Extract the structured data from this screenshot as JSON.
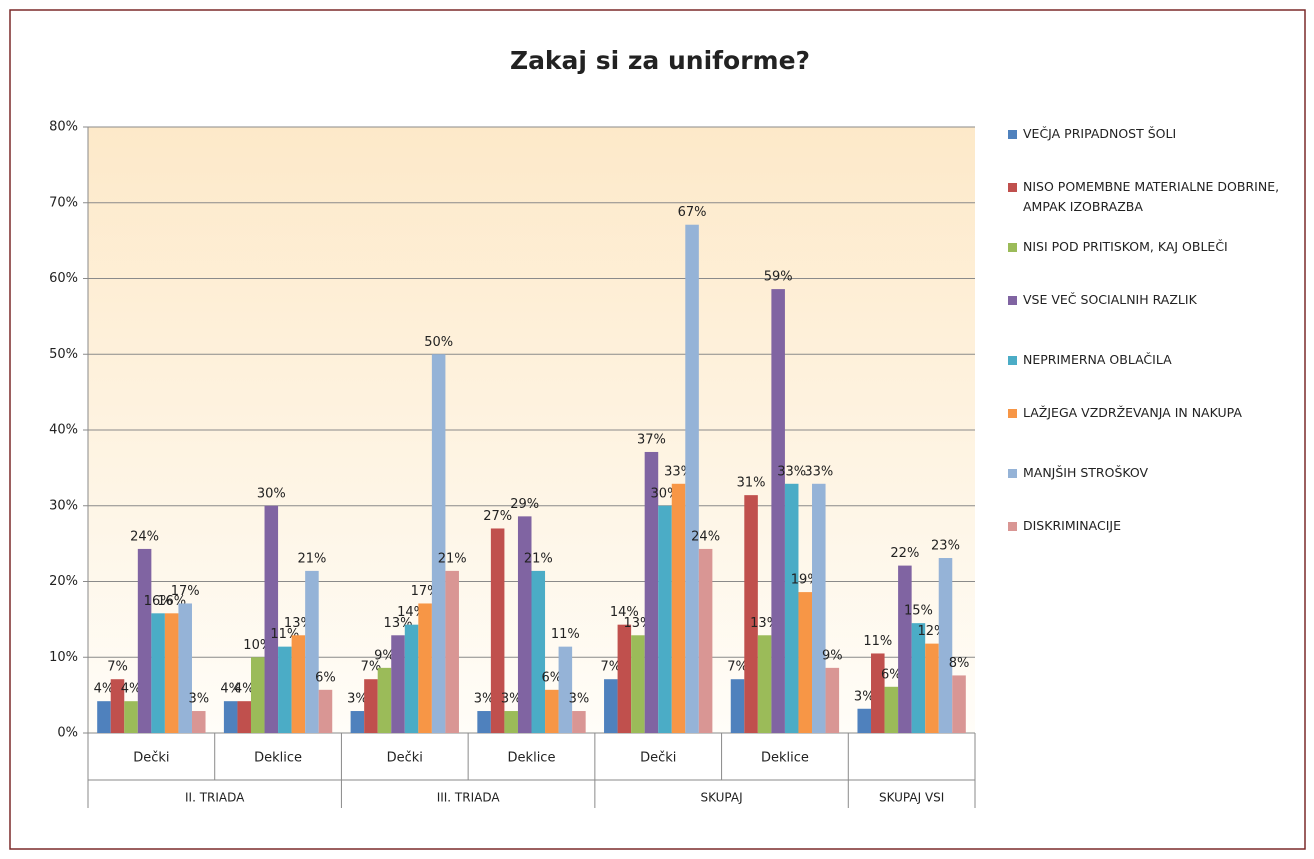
{
  "chart_data": {
    "type": "bar",
    "title": "Zakaj si za uniforme?",
    "categories": [
      "Dečki",
      "Deklice",
      "Dečki",
      "Deklice",
      "Dečki",
      "Deklice",
      null
    ],
    "category_groups": [
      "II. TRIADA",
      "II. TRIADA",
      "III. TRIADA",
      "III. TRIADA",
      "SKUPAJ",
      "SKUPAJ",
      "SKUPAJ VSI"
    ],
    "ylim": [
      0,
      80
    ],
    "yticks": [
      {
        "value": 0,
        "label": "0%"
      },
      {
        "value": 10,
        "label": "10%"
      },
      {
        "value": 20,
        "label": "20%"
      },
      {
        "value": 30,
        "label": "30%"
      },
      {
        "value": 40,
        "label": "40%"
      },
      {
        "value": 50,
        "label": "50%"
      },
      {
        "value": 60,
        "label": "60%"
      },
      {
        "value": 70,
        "label": "70%"
      },
      {
        "value": 80,
        "label": "80%"
      }
    ],
    "grid": true,
    "legend": "right",
    "series": [
      {
        "name": "VEČJA PRIPADNOST ŠOLI",
        "color": "#4f81bd",
        "values": [
          4.2,
          4.2,
          2.9,
          2.9,
          7.1,
          7.1,
          3.2
        ],
        "value_labels": [
          "4%",
          "4%",
          "3%",
          "3%",
          "7%",
          "7%",
          "3%"
        ]
      },
      {
        "name": "NISO POMEMBNE MATERIALNE DOBRINE, AMPAK IZOBRAZBA",
        "color": "#c0504d",
        "values": [
          7.1,
          4.2,
          7.1,
          27.0,
          14.3,
          31.4,
          10.5
        ],
        "value_labels": [
          "7%",
          "4%",
          "7%",
          "27%",
          "14%",
          "31%",
          "11%"
        ]
      },
      {
        "name": "NISI POD PRITISKOM, KAJ OBLEČI",
        "color": "#9bbb59",
        "values": [
          4.2,
          10.0,
          8.6,
          2.9,
          12.9,
          12.9,
          6.1
        ],
        "value_labels": [
          "4%",
          "10%",
          "9%",
          "3%",
          "13%",
          "13%",
          "6%"
        ]
      },
      {
        "name": "VSE VEČ SOCIALNIH RAZLIK",
        "color": "#8064a2",
        "values": [
          24.3,
          30.0,
          12.9,
          28.6,
          37.1,
          58.6,
          22.1
        ],
        "value_labels": [
          "24%",
          "30%",
          "13%",
          "29%",
          "37%",
          "59%",
          "22%"
        ]
      },
      {
        "name": "NEPRIMERNA OBLAČILA",
        "color": "#4bacc6",
        "values": [
          15.8,
          11.4,
          14.3,
          21.4,
          30.0,
          32.9,
          14.5
        ],
        "value_labels": [
          "16%",
          "11%",
          "14%",
          "21%",
          "30%",
          "33%",
          "15%"
        ]
      },
      {
        "name": "LAŽJEGA VZDRŽEVANJA IN NAKUPA",
        "color": "#f79646",
        "values": [
          15.8,
          12.9,
          17.1,
          5.7,
          32.9,
          18.6,
          11.8
        ],
        "value_labels": [
          "16%",
          "13%",
          "17%",
          "6%",
          "33%",
          "19%",
          "12%"
        ]
      },
      {
        "name": "MANJŠIH STROŠKOV",
        "color": "#95b3d7",
        "values": [
          17.1,
          21.4,
          50.0,
          11.4,
          67.1,
          32.9,
          23.1
        ],
        "value_labels": [
          "17%",
          "21%",
          "50%",
          "11%",
          "67%",
          "33%",
          "23%"
        ]
      },
      {
        "name": "DISKRIMINACIJE",
        "color": "#d99694",
        "values": [
          2.9,
          5.7,
          21.4,
          2.9,
          24.3,
          8.6,
          7.6
        ],
        "value_labels": [
          "3%",
          "6%",
          "21%",
          "3%",
          "24%",
          "9%",
          "8%"
        ]
      }
    ]
  }
}
